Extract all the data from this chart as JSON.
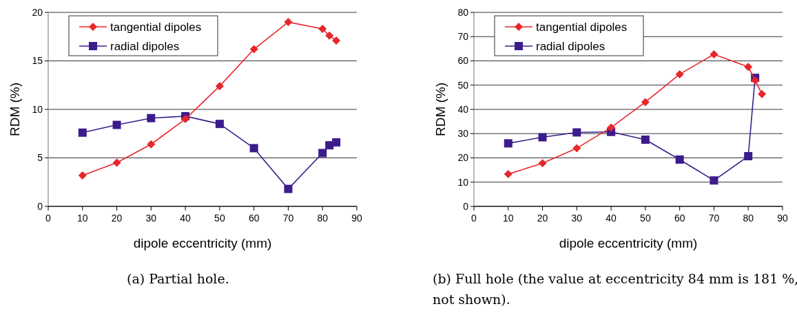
{
  "chart_data": [
    {
      "type": "line",
      "xlabel": "dipole eccentricity (mm)",
      "ylabel": "RDM (%)",
      "x": [
        10,
        20,
        30,
        40,
        50,
        60,
        70,
        80,
        82,
        84
      ],
      "xlim": [
        0,
        90
      ],
      "xticks": [
        0,
        10,
        20,
        30,
        40,
        50,
        60,
        70,
        80,
        90
      ],
      "ylim": [
        0,
        20
      ],
      "yticks": [
        0,
        5,
        10,
        15,
        20
      ],
      "grid": "y",
      "legend": "top left",
      "annotations": [
        "(a) Partial hole."
      ],
      "series": [
        {
          "name": "tangential dipoles",
          "color": "#e8262b",
          "marker": "diamond",
          "values": [
            3.2,
            4.5,
            6.4,
            9.0,
            12.4,
            16.2,
            19.0,
            18.3,
            17.6,
            17.1
          ]
        },
        {
          "name": "radial dipoles",
          "color": "#3b1c8c",
          "marker": "square",
          "values": [
            7.6,
            8.4,
            9.1,
            9.3,
            8.5,
            6.0,
            1.8,
            5.5,
            6.3,
            6.6
          ]
        }
      ]
    },
    {
      "type": "line",
      "xlabel": "dipole eccentricity (mm)",
      "ylabel": "RDM (%)",
      "x": [
        10,
        20,
        30,
        40,
        50,
        60,
        70,
        80,
        82,
        84
      ],
      "xlim": [
        0,
        90
      ],
      "xticks": [
        0,
        10,
        20,
        30,
        40,
        50,
        60,
        70,
        80,
        90
      ],
      "ylim": [
        0,
        80
      ],
      "yticks": [
        0,
        10,
        20,
        30,
        40,
        50,
        60,
        70,
        80
      ],
      "grid": "y",
      "legend": "top left",
      "annotations": [
        "(b) Full hole (the value at eccentricity 84 mm is 181 %, not shown)."
      ],
      "series": [
        {
          "name": "tangential dipoles",
          "color": "#e8262b",
          "marker": "diamond",
          "values": [
            13.3,
            17.8,
            24.0,
            32.5,
            43.0,
            54.5,
            62.7,
            57.5,
            52,
            46.3
          ]
        },
        {
          "name": "radial dipoles",
          "color": "#3b1c8c",
          "marker": "square",
          "values": [
            26,
            28.5,
            30.5,
            30.7,
            27.5,
            19.3,
            10.7,
            20.7,
            53,
            null
          ]
        }
      ]
    }
  ]
}
